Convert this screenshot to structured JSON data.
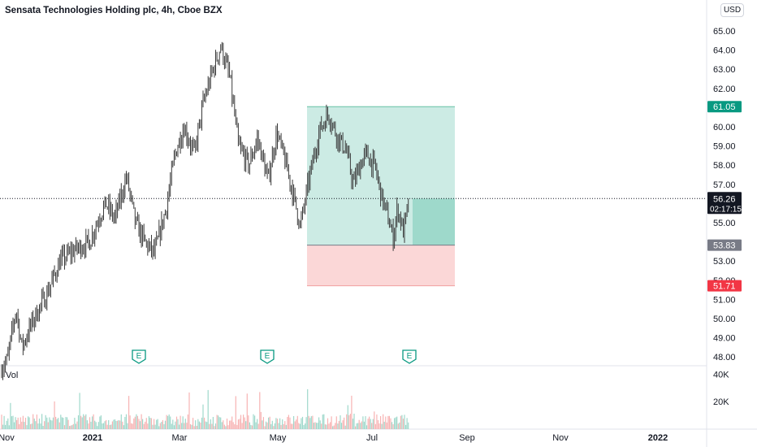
{
  "header": {
    "title": "Sensata Technologies Holding plc, 4h, Cboe BZX",
    "currency_button": "USD"
  },
  "volume_pane": {
    "label": "Vol",
    "ticks": [
      "40K",
      "20K"
    ]
  },
  "chart_data": {
    "type": "candlestick",
    "price_axis": {
      "ylim": [
        47.7,
        65.6
      ],
      "ticks": [
        "48.00",
        "49.00",
        "50.00",
        "51.00",
        "52.00",
        "53.00",
        "55.00",
        "56.00",
        "57.00",
        "58.00",
        "59.00",
        "60.00",
        "61.00",
        "62.00",
        "63.00",
        "64.00",
        "65.00"
      ]
    },
    "time_axis": {
      "ticks": [
        "Nov",
        "2021",
        "Mar",
        "May",
        "Jul",
        "Sep",
        "Nov",
        "2022"
      ]
    },
    "price_labels": {
      "target": "61.05",
      "current": "56.26",
      "countdown": "02:17:15",
      "entry": "53.83",
      "stop": "51.71"
    },
    "earnings_markers": [
      "E",
      "E",
      "E"
    ],
    "price_path": [
      [
        "2020-10-28",
        47.2
      ],
      [
        "2020-11-04",
        47.8
      ],
      [
        "2020-11-10",
        50.5
      ],
      [
        "2020-11-14",
        48.5
      ],
      [
        "2020-11-22",
        50.0
      ],
      [
        "2020-12-01",
        51.3
      ],
      [
        "2020-12-10",
        53.0
      ],
      [
        "2020-12-20",
        53.6
      ],
      [
        "2020-12-30",
        54.0
      ],
      [
        "2021-01-06",
        55.4
      ],
      [
        "2021-01-10",
        56.0
      ],
      [
        "2021-01-16",
        55.2
      ],
      [
        "2021-01-24",
        57.4
      ],
      [
        "2021-01-30",
        55.0
      ],
      [
        "2021-02-06",
        53.9
      ],
      [
        "2021-02-12",
        53.4
      ],
      [
        "2021-02-20",
        55.8
      ],
      [
        "2021-02-26",
        58.6
      ],
      [
        "2021-03-04",
        60.0
      ],
      [
        "2021-03-11",
        58.6
      ],
      [
        "2021-03-17",
        61.2
      ],
      [
        "2021-03-23",
        62.8
      ],
      [
        "2021-03-29",
        64.2
      ],
      [
        "2021-04-04",
        62.6
      ],
      [
        "2021-04-10",
        59.0
      ],
      [
        "2021-04-17",
        58.0
      ],
      [
        "2021-04-23",
        59.4
      ],
      [
        "2021-04-30",
        57.2
      ],
      [
        "2021-05-06",
        59.7
      ],
      [
        "2021-05-12",
        58.1
      ],
      [
        "2021-05-18",
        56.2
      ],
      [
        "2021-05-22",
        54.8
      ],
      [
        "2021-05-28",
        57.3
      ],
      [
        "2021-06-04",
        59.8
      ],
      [
        "2021-06-10",
        60.7
      ],
      [
        "2021-06-16",
        59.5
      ],
      [
        "2021-06-22",
        58.8
      ],
      [
        "2021-06-27",
        57.0
      ],
      [
        "2021-07-02",
        58.1
      ],
      [
        "2021-07-06",
        58.6
      ],
      [
        "2021-07-12",
        57.8
      ],
      [
        "2021-07-16",
        56.4
      ],
      [
        "2021-07-20",
        55.4
      ],
      [
        "2021-07-24",
        54.2
      ],
      [
        "2021-07-27",
        55.8
      ],
      [
        "2021-07-31",
        54.5
      ],
      [
        "2021-08-04",
        56.26
      ]
    ],
    "volume_range": [
      0,
      45000
    ]
  }
}
